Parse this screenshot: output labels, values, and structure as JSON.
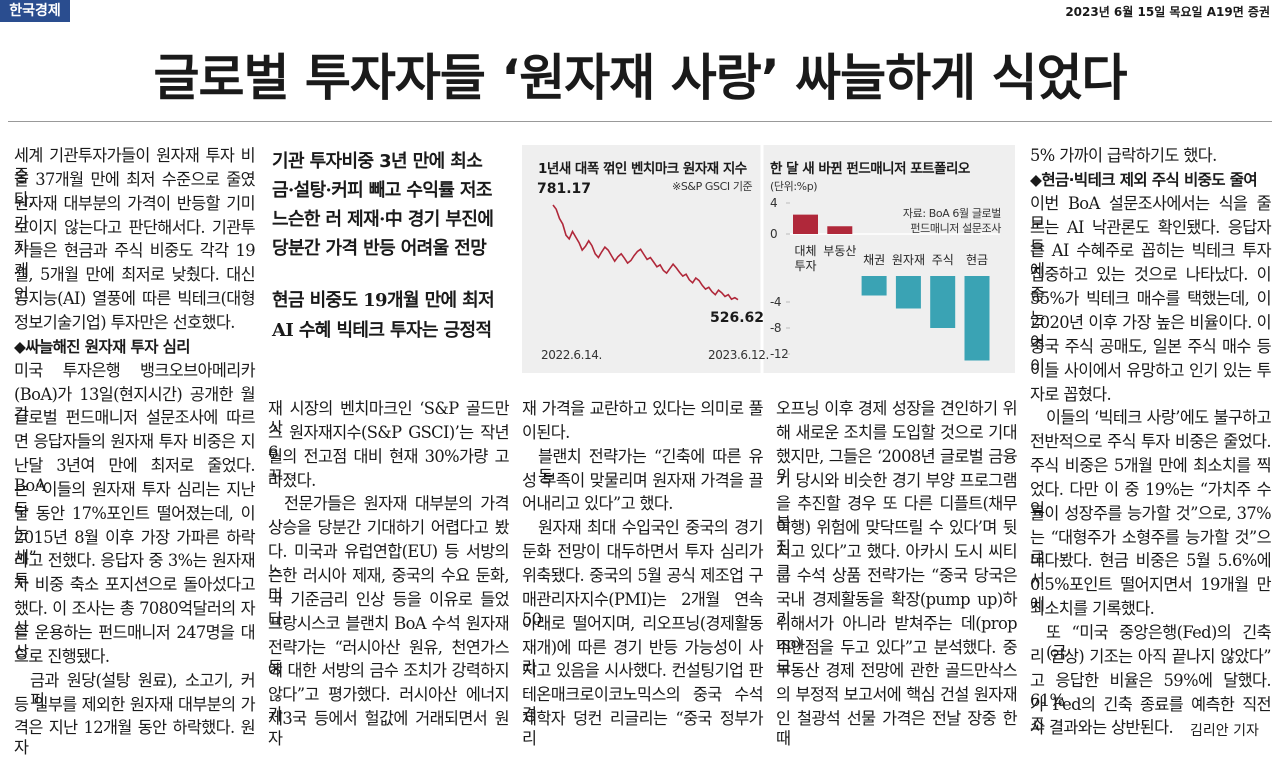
{
  "masthead": "한국경제",
  "dateline": "2023년 6월 15일 목요일 A19면 증권",
  "headline": "글로벌 투자자들 ‘원자재 사랑’ 싸늘하게 식었다",
  "subheads": [
    "기관 투자비중 3년 만에 최소",
    "금·설탕·커피 빼고 수익률 저조",
    "느슨한 러 제재·中 경기 부진에",
    "당분간 가격 반등 어려울 전망",
    "현금 비중도 19개월 만에 최저",
    "AI 수혜 빅테크 투자는 긍정적"
  ],
  "columns": [
    [
      [
        "세계 기관투자가들이 원자재 투자 비중",
        "을 37개월 만에 최저 수준으로 줄였다.",
        "원자재 대부분의 가격이 반등할 기미가",
        "보이지 않는다고 판단해서다. 기관투자",
        "가들은 현금과 주식 비중도 각각 19개",
        "월, 5개월 만에 최저로 낮췄다. 대신 인",
        "공지능(AI) 열풍에 따른 빅테크(대형",
        "정보기술기업) 투자만은 선호했다."
      ],
      [
        "◆싸늘해진 원자재 투자 심리"
      ],
      [
        "미국 투자은행 뱅크오브아메리카",
        "(BoA)가 13일(현지시간) 공개한 월간",
        "글로벌 펀드매니저 설문조사에 따르",
        "면 응답자들의 원자재 투자 비중은 지",
        "난달 3년여 만에 최저로 줄었다. BoA",
        "는 “이들의 원자재 투자 심리는 지난 두",
        "달 동안 17%포인트 떨어졌는데, 이는",
        "2015년 8월 이후 가장 가파른 하락세”",
        "라고 전했다. 응답자 중 3%는 원자재 투",
        "자 비중 축소 포지션으로 돌아섰다고",
        "했다. 이 조사는 총 7080억달러의 자산",
        "을 운용하는 펀드매니저 247명을 대상",
        "으로 진행됐다."
      ],
      [
        "금과 원당(설탕 원료), 소고기, 커피",
        "등 일부를 제외한 원자재 대부분의 가",
        "격은 지난 12개월 동안 하락했다. 원자"
      ]
    ],
    [
      [
        "재 시장의 벤치마크인 ‘S&P 골드만삭",
        "스 원자재지수(S&P GSCI)’는 작년 6",
        "월의 전고점 대비 현재 30%가량 고꾸",
        "라졌다."
      ],
      [
        "전문가들은 원자재 대부분의 가격",
        "상승을 당분간 기대하기 어렵다고 봤",
        "다. 미국과 유럽연합(EU) 등 서방의 느",
        "슨한 러시아 제재, 중국의 수요 둔화, 미",
        "국 기준금리 인상 등을 이유로 들었다.",
        "프랑시스코 블랜치 BoA 수석 원자재",
        "전략가는 “러시아산 원유, 천연가스 등",
        "에 대한 서방의 금수 조치가 강력하지",
        "않다”고 평가했다. 러시아산 에너지가",
        "제3국 등에서 헐값에 거래되면서 원자"
      ]
    ],
    [
      [
        "재 가격을 교란하고 있다는 의미로 풀",
        "이된다."
      ],
      [
        "블랜치 전략가는 “긴축에 따른 유동",
        "성 부족이 맞물리며 원자재 가격을 끌",
        "어내리고 있다”고 했다."
      ],
      [
        "원자재 최대 수입국인 중국의 경기",
        "둔화 전망이 대두하면서 투자 심리가",
        "위축됐다. 중국의 5월 공식 제조업 구",
        "매관리자지수(PMI)는 2개월 연속 50",
        "아래로 떨어지며, 리오프닝(경제활동",
        "재개)에 따른 경기 반등 가능성이 사라",
        "지고 있음을 시사했다. 컨설팅기업 판",
        "테온매크로이코노믹스의 중국 수석 경",
        "제학자 덩컨 리글리는 “중국 정부가 리"
      ]
    ],
    [
      [
        "오프닝 이후 경제 성장을 견인하기 위",
        "해 새로운 조치를 도입할 것으로 기대",
        "했지만, 그들은 ‘2008년 글로벌 금융위",
        "기 당시와 비슷한 경기 부양 프로그램",
        "을 추진할 경우 또 다른 디플트(채무불",
        "이행) 위험에 맞닥뜨릴 수 있다’며 뒷짐",
        "지고 있다”고 했다. 아카시 도시 씨티그",
        "룹 수석 상품 전략가는 “중국 당국은",
        "국내 경제활동을 확장(pump up)하기",
        "위해서가 아니라 받쳐주는 데(prop up)",
        "주안점을 두고 있다”고 분석했다. 중국",
        "부동산 경제 전망에 관한 골드만삭스",
        "의 부정적 보고서에 핵심 건설 원자재",
        "인 철광석 선물 가격은 전날 장중 한때"
      ]
    ],
    [
      [
        "5% 가까이 급락하기도 했다."
      ],
      [
        "◆현금·빅테크 제외 주식 비중도 줄여"
      ],
      [
        "이번 BoA 설문조사에서는 식을 줄 모",
        "르는 AI 낙관론도 확인됐다. 응답자들",
        "은 AI 수혜주로 꼽히는 빅테크 투자에",
        "집중하고 있는 것으로 나타났다. 이 중",
        "55%가 빅테크 매수를 택했는데, 이는",
        "2020년 이후 가장 높은 비율이다. 이어",
        "중국 주식 공매도, 일본 주식 매수 등이",
        "이들 사이에서 유망하고 인기 있는 투",
        "자로 꼽혔다."
      ],
      [
        "이들의 ‘빅테크 사랑’에도 불구하고",
        "전반적으로 주식 투자 비중은 줄었다.",
        "주식 비중은 5개월 만에 최소치를 찍",
        "었다. 다만 이 중 19%는 “가치주 수익",
        "률이 성장주를 능가할 것”으로, 37%",
        "는 “대형주가 소형주를 능가할 것”으로",
        "내다봤다. 현금 비중은 5월 5.6%에서",
        "0.5%포인트 떨어지면서 19개월 만에",
        "최소치를 기록했다."
      ],
      [
        "또 “미국 중앙은행(Fed)의 긴축(금",
        "리 인상) 기조는 아직 끝나지 않았다”",
        "고 응답한 비율은 59%에 달했다. 61%",
        "가 Fed의 긴축 종료를 예측한 직전 조",
        "사 결과와는 상반된다."
      ]
    ]
  ],
  "byline": "김리안 기자",
  "chart_data": [
    {
      "type": "line",
      "title": "1년새 대폭 꺾인 벤치마크 원자재 지수",
      "note": "※S&P GSCI 기준",
      "color": "#b0283a",
      "categories": [
        "2022.6.14.",
        null,
        null,
        null,
        null,
        null,
        null,
        null,
        null,
        null,
        null,
        null,
        null,
        null,
        null,
        null,
        null,
        null,
        null,
        null,
        null,
        null,
        null,
        null,
        null,
        null,
        null,
        null,
        null,
        null,
        null,
        null,
        null,
        null,
        null,
        null,
        null,
        null,
        null,
        null,
        null,
        null,
        null,
        null,
        null,
        null,
        null,
        null,
        null,
        null,
        null,
        null,
        null,
        null,
        null,
        null,
        null,
        "2023.6.12."
      ],
      "values": [
        781.17,
        770,
        745,
        730,
        700,
        690,
        710,
        695,
        680,
        660,
        670,
        685,
        672,
        650,
        640,
        655,
        668,
        660,
        645,
        630,
        642,
        650,
        638,
        625,
        632,
        645,
        656,
        662,
        648,
        635,
        640,
        628,
        615,
        620,
        605,
        598,
        610,
        622,
        612,
        600,
        590,
        595,
        580,
        572,
        585,
        578,
        565,
        555,
        560,
        548,
        540,
        552,
        545,
        535,
        540,
        528,
        532,
        526.62
      ],
      "ylim": [
        480,
        800
      ]
    },
    {
      "type": "bar",
      "title": "한 달 새 바뀐 펀드매니저 포트폴리오",
      "unit": "(단위:%p)",
      "source": [
        "자료: BoA 6월 글로벌",
        "펀드매니저 설문조사"
      ],
      "categories": [
        "대체 투자",
        "부동산",
        "채권",
        "원자재",
        "주식",
        "현금"
      ],
      "values": [
        2.5,
        1,
        -3,
        -5,
        -8,
        -13
      ],
      "colors": {
        "positive": "#b0283a",
        "negative": "#3aa3b4"
      },
      "yticks": [
        4,
        0,
        -4,
        -8,
        -12
      ]
    }
  ]
}
